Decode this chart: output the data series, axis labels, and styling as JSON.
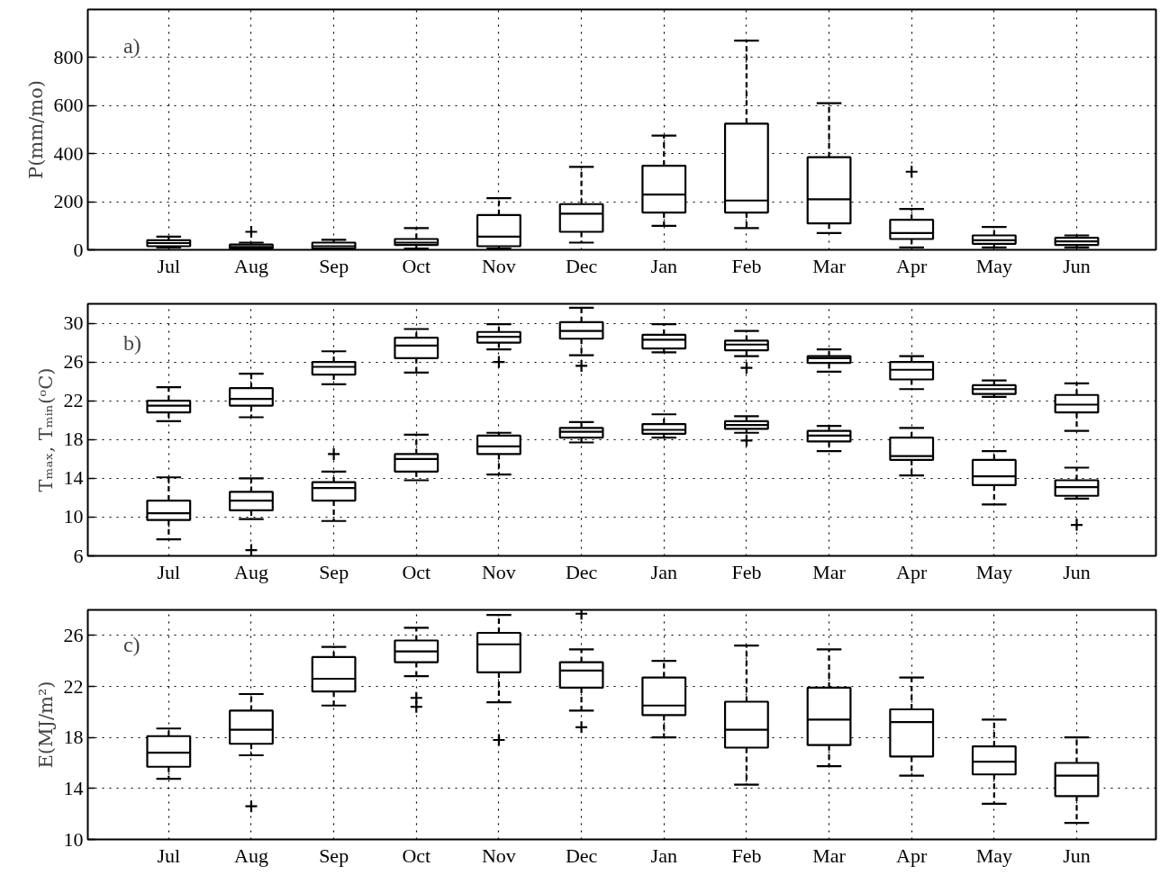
{
  "chart_data": [
    {
      "type": "box",
      "ylabel": "P(mm/mo)",
      "annotations": [
        "a)"
      ],
      "categories": [
        "Jul",
        "Aug",
        "Sep",
        "Oct",
        "Nov",
        "Dec",
        "Jan",
        "Feb",
        "Mar",
        "Apr",
        "May",
        "Jun"
      ],
      "ylim": [
        0,
        1000
      ],
      "yticks": [
        0,
        200,
        400,
        600,
        800
      ],
      "grid": true,
      "marker": "cross",
      "line_style": "dashed",
      "series": [
        {
          "color": "#000000",
          "boxes": [
            {
              "low": 10,
              "q1": 15,
              "median": 28,
              "q3": 40,
              "high": 55
            },
            {
              "low": 0,
              "q1": 5,
              "median": 12,
              "q3": 22,
              "high": 30,
              "outliers": [
                75
              ]
            },
            {
              "low": 0,
              "q1": 5,
              "median": 15,
              "q3": 30,
              "high": 42
            },
            {
              "low": 5,
              "q1": 20,
              "median": 30,
              "q3": 45,
              "high": 90
            },
            {
              "low": 5,
              "q1": 15,
              "median": 55,
              "q3": 145,
              "high": 215
            },
            {
              "low": 30,
              "q1": 75,
              "median": 150,
              "q3": 190,
              "high": 345
            },
            {
              "low": 100,
              "q1": 155,
              "median": 230,
              "q3": 350,
              "high": 475
            },
            {
              "low": 90,
              "q1": 155,
              "median": 205,
              "q3": 525,
              "high": 870
            },
            {
              "low": 70,
              "q1": 110,
              "median": 210,
              "q3": 385,
              "high": 610
            },
            {
              "low": 10,
              "q1": 45,
              "median": 70,
              "q3": 125,
              "high": 170,
              "outliers": [
                325
              ]
            },
            {
              "low": 10,
              "q1": 25,
              "median": 40,
              "q3": 60,
              "high": 95
            },
            {
              "low": 10,
              "q1": 20,
              "median": 35,
              "q3": 50,
              "high": 60
            }
          ]
        }
      ]
    },
    {
      "type": "box",
      "ylabel": "Tₘₐₓ, Tₘᵢₙ(ᵒC)",
      "annotations": [
        "b)"
      ],
      "categories": [
        "Jul",
        "Aug",
        "Sep",
        "Oct",
        "Nov",
        "Dec",
        "Jan",
        "Feb",
        "Mar",
        "Apr",
        "May",
        "Jun"
      ],
      "ylim": [
        6,
        32
      ],
      "yticks": [
        6,
        10,
        14,
        18,
        22,
        26,
        30
      ],
      "grid": true,
      "marker": "cross",
      "line_style": "dashed",
      "series": [
        {
          "color": "#000000",
          "boxes": [
            {
              "low": 19.9,
              "q1": 20.8,
              "median": 21.5,
              "q3": 22.0,
              "high": 23.4
            },
            {
              "low": 20.3,
              "q1": 21.5,
              "median": 22.2,
              "q3": 23.3,
              "high": 24.8
            },
            {
              "low": 23.7,
              "q1": 24.7,
              "median": 25.5,
              "q3": 26.0,
              "high": 27.1
            },
            {
              "low": 24.9,
              "q1": 26.4,
              "median": 27.7,
              "q3": 28.5,
              "high": 29.4
            },
            {
              "low": 27.3,
              "q1": 28.0,
              "median": 28.6,
              "q3": 29.1,
              "high": 29.9,
              "outliers": [
                26.0
              ]
            },
            {
              "low": 26.7,
              "q1": 28.4,
              "median": 29.2,
              "q3": 30.1,
              "high": 31.6,
              "outliers": [
                25.6
              ]
            },
            {
              "low": 27.0,
              "q1": 27.4,
              "median": 28.3,
              "q3": 28.8,
              "high": 29.9
            },
            {
              "low": 26.6,
              "q1": 27.2,
              "median": 27.8,
              "q3": 28.2,
              "high": 29.2,
              "outliers": [
                25.4
              ]
            },
            {
              "low": 25.0,
              "q1": 25.9,
              "median": 26.4,
              "q3": 26.6,
              "high": 27.3
            },
            {
              "low": 23.2,
              "q1": 24.2,
              "median": 25.2,
              "q3": 26.0,
              "high": 26.6
            },
            {
              "low": 22.4,
              "q1": 22.7,
              "median": 23.2,
              "q3": 23.6,
              "high": 24.1
            },
            {
              "low": 18.9,
              "q1": 20.8,
              "median": 21.6,
              "q3": 22.6,
              "high": 23.8
            }
          ]
        },
        {
          "color": "#000000",
          "boxes": [
            {
              "low": 7.7,
              "q1": 9.7,
              "median": 10.4,
              "q3": 11.7,
              "high": 14.1
            },
            {
              "low": 9.8,
              "q1": 10.7,
              "median": 11.7,
              "q3": 12.6,
              "high": 14.0,
              "outliers": [
                6.6
              ]
            },
            {
              "low": 9.6,
              "q1": 11.7,
              "median": 13.0,
              "q3": 13.6,
              "high": 14.7,
              "outliers": [
                16.5
              ]
            },
            {
              "low": 13.8,
              "q1": 14.7,
              "median": 16.0,
              "q3": 16.5,
              "high": 18.5
            },
            {
              "low": 14.4,
              "q1": 16.5,
              "median": 17.3,
              "q3": 18.4,
              "high": 18.7
            },
            {
              "low": 17.7,
              "q1": 18.2,
              "median": 18.8,
              "q3": 19.2,
              "high": 19.8
            },
            {
              "low": 18.2,
              "q1": 18.6,
              "median": 19.0,
              "q3": 19.6,
              "high": 20.6
            },
            {
              "low": 18.7,
              "q1": 19.1,
              "median": 19.5,
              "q3": 19.9,
              "high": 20.4,
              "outliers": [
                17.9
              ]
            },
            {
              "low": 16.8,
              "q1": 17.8,
              "median": 18.4,
              "q3": 18.9,
              "high": 19.4
            },
            {
              "low": 14.3,
              "q1": 15.9,
              "median": 16.3,
              "q3": 18.2,
              "high": 19.2
            },
            {
              "low": 11.3,
              "q1": 13.3,
              "median": 14.2,
              "q3": 15.9,
              "high": 16.8
            },
            {
              "low": 11.9,
              "q1": 12.2,
              "median": 13.1,
              "q3": 13.8,
              "high": 15.1,
              "outliers": [
                9.2
              ]
            }
          ]
        }
      ]
    },
    {
      "type": "box",
      "ylabel": "E(MJ/m²)",
      "annotations": [
        "c)"
      ],
      "categories": [
        "Jul",
        "Aug",
        "Sep",
        "Oct",
        "Nov",
        "Dec",
        "Jan",
        "Feb",
        "Mar",
        "Apr",
        "May",
        "Jun"
      ],
      "ylim": [
        10,
        28
      ],
      "yticks": [
        10,
        14,
        18,
        22,
        26
      ],
      "grid": true,
      "marker": "cross",
      "line_style": "dashed",
      "series": [
        {
          "color": "#000000",
          "boxes": [
            {
              "low": 14.75,
              "q1": 15.7,
              "median": 16.8,
              "q3": 18.1,
              "high": 18.7
            },
            {
              "low": 16.6,
              "q1": 17.5,
              "median": 18.6,
              "q3": 20.1,
              "high": 21.4,
              "outliers": [
                12.6
              ]
            },
            {
              "low": 20.5,
              "q1": 21.6,
              "median": 22.6,
              "q3": 24.3,
              "high": 25.1
            },
            {
              "low": 22.8,
              "q1": 23.9,
              "median": 24.75,
              "q3": 25.6,
              "high": 26.6,
              "outliers": [
                21.1,
                20.4
              ]
            },
            {
              "low": 20.75,
              "q1": 23.1,
              "median": 25.3,
              "q3": 26.2,
              "high": 27.6,
              "outliers": [
                17.8
              ]
            },
            {
              "low": 20.1,
              "q1": 21.9,
              "median": 23.25,
              "q3": 23.9,
              "high": 24.9,
              "outliers": [
                27.7,
                18.8
              ]
            },
            {
              "low": 18.0,
              "q1": 19.75,
              "median": 20.5,
              "q3": 22.7,
              "high": 24.0
            },
            {
              "low": 14.3,
              "q1": 17.2,
              "median": 18.6,
              "q3": 20.8,
              "high": 25.2
            },
            {
              "low": 15.75,
              "q1": 17.4,
              "median": 19.4,
              "q3": 21.9,
              "high": 24.9
            },
            {
              "low": 15.0,
              "q1": 16.5,
              "median": 19.2,
              "q3": 20.2,
              "high": 22.7
            },
            {
              "low": 12.8,
              "q1": 15.1,
              "median": 16.1,
              "q3": 17.3,
              "high": 19.4
            },
            {
              "low": 11.3,
              "q1": 13.4,
              "median": 15.0,
              "q3": 16.0,
              "high": 18.0
            }
          ]
        }
      ]
    }
  ]
}
